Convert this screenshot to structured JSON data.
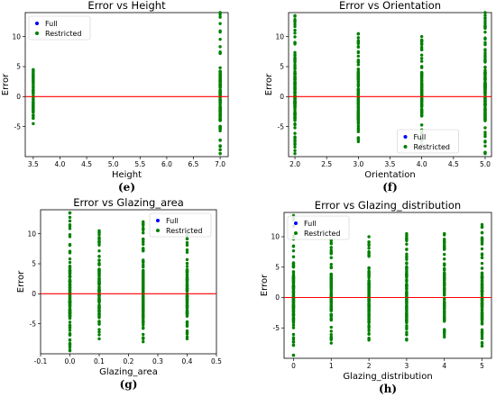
{
  "colors": {
    "full": "#0000ff",
    "restricted": "#008000",
    "zero_line": "#ff0000"
  },
  "chart_data": [
    {
      "type": "scatter",
      "title": "Error vs Height",
      "xlabel": "Height",
      "ylabel": "Error",
      "panel_label": "(e)",
      "xlim": [
        3.35,
        7.15
      ],
      "ylim": [
        -10,
        14
      ],
      "xticks": [
        3.5,
        4.0,
        4.5,
        5.0,
        5.5,
        6.0,
        6.5,
        7.0
      ],
      "xtick_labels": [
        "3.5",
        "4.0",
        "4.5",
        "5.0",
        "5.5",
        "6.0",
        "6.5",
        "7.0"
      ],
      "yticks": [
        -5,
        0,
        5,
        10
      ],
      "ytick_labels": [
        "-5",
        "0",
        "5",
        "10"
      ],
      "legend": {
        "position": "top-left",
        "entries": [
          "Full",
          "Restricted"
        ]
      },
      "zero_line": 0,
      "series": [
        {
          "name": "Full",
          "x": [],
          "y": []
        },
        {
          "name": "Restricted",
          "columns": [
            {
              "x": 3.5,
              "min": -4.5,
              "max": 4.5
            },
            {
              "x": 7.0,
              "min": -9.5,
              "max": 14
            }
          ]
        }
      ]
    },
    {
      "type": "scatter",
      "title": "Error vs Orientation",
      "xlabel": "Orientation",
      "ylabel": "Error",
      "panel_label": "(f)",
      "xlim": [
        1.9,
        5.1
      ],
      "ylim": [
        -10,
        14
      ],
      "xticks": [
        2.0,
        2.5,
        3.0,
        3.5,
        4.0,
        4.5,
        5.0
      ],
      "xtick_labels": [
        "2.0",
        "2.5",
        "3.0",
        "3.5",
        "4.0",
        "4.5",
        "5.0"
      ],
      "yticks": [
        -5,
        0,
        5,
        10
      ],
      "ytick_labels": [
        "-5",
        "0",
        "5",
        "10"
      ],
      "legend": {
        "position": "bottom-center",
        "entries": [
          "Full",
          "Restricted"
        ]
      },
      "zero_line": 0,
      "series": [
        {
          "name": "Full",
          "x": [],
          "y": []
        },
        {
          "name": "Restricted",
          "columns": [
            {
              "x": 2.0,
              "min": -9.5,
              "max": 13.5
            },
            {
              "x": 3.0,
              "min": -7.5,
              "max": 10.5
            },
            {
              "x": 4.0,
              "min": -8.0,
              "max": 10.0
            },
            {
              "x": 5.0,
              "min": -9.5,
              "max": 14
            }
          ]
        }
      ]
    },
    {
      "type": "scatter",
      "title": "Error vs Glazing_area",
      "xlabel": "Glazing_area",
      "ylabel": "Error",
      "panel_label": "(g)",
      "xlim": [
        -0.1,
        0.5
      ],
      "ylim": [
        -10,
        14
      ],
      "xticks": [
        -0.1,
        0.0,
        0.1,
        0.2,
        0.3,
        0.4,
        0.5
      ],
      "xtick_labels": [
        "-0.1",
        "0.0",
        "0.1",
        "0.2",
        "0.3",
        "0.4",
        "0.5"
      ],
      "yticks": [
        -5,
        0,
        5,
        10
      ],
      "ytick_labels": [
        "-5",
        "0",
        "5",
        "10"
      ],
      "legend": {
        "position": "top-right",
        "entries": [
          "Full",
          "Restricted"
        ]
      },
      "zero_line": 0,
      "series": [
        {
          "name": "Full",
          "x": [],
          "y": []
        },
        {
          "name": "Restricted",
          "columns": [
            {
              "x": 0.0,
              "min": -9.5,
              "max": 13.5
            },
            {
              "x": 0.1,
              "min": -7.5,
              "max": 10.5
            },
            {
              "x": 0.25,
              "min": -8.0,
              "max": 12.0
            },
            {
              "x": 0.4,
              "min": -7.5,
              "max": 10.0
            }
          ]
        }
      ]
    },
    {
      "type": "scatter",
      "title": "Error vs Glazing_distribution",
      "xlabel": "Glazing_distribution",
      "ylabel": "Error",
      "panel_label": "(h)",
      "xlim": [
        -0.25,
        5.25
      ],
      "ylim": [
        -10,
        14
      ],
      "xticks": [
        0,
        1,
        2,
        3,
        4,
        5
      ],
      "xtick_labels": [
        "0",
        "1",
        "2",
        "3",
        "4",
        "5"
      ],
      "yticks": [
        -5,
        0,
        5,
        10
      ],
      "ytick_labels": [
        "-5",
        "0",
        "5",
        "10"
      ],
      "legend": {
        "position": "top-left",
        "entries": [
          "Full",
          "Restricted"
        ]
      },
      "zero_line": 0,
      "series": [
        {
          "name": "Full",
          "x": [],
          "y": []
        },
        {
          "name": "Restricted",
          "columns": [
            {
              "x": 0,
              "min": -9.5,
              "max": 13.5
            },
            {
              "x": 1,
              "min": -7.5,
              "max": 9.5
            },
            {
              "x": 2,
              "min": -7.0,
              "max": 10.0
            },
            {
              "x": 3,
              "min": -7.0,
              "max": 10.5
            },
            {
              "x": 4,
              "min": -6.5,
              "max": 10.5
            },
            {
              "x": 5,
              "min": -8.0,
              "max": 12.0
            }
          ]
        }
      ]
    }
  ]
}
